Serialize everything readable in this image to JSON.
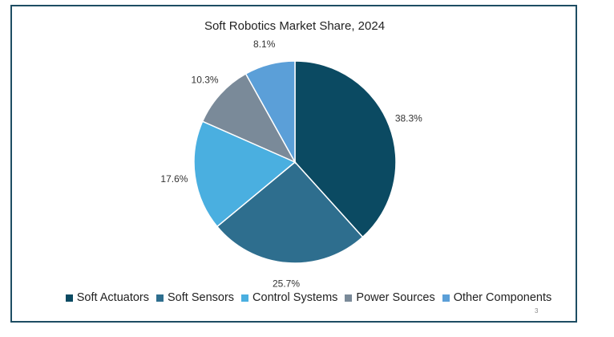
{
  "page_number": "3",
  "chart_data": {
    "type": "pie",
    "title": "Soft Robotics Market Share, 2024",
    "categories": [
      "Soft Actuators",
      "Soft Sensors",
      "Control Systems",
      "Power Sources",
      "Other Components"
    ],
    "values": [
      38.3,
      25.7,
      17.6,
      10.3,
      8.1
    ],
    "value_labels": [
      "38.3%",
      "25.7%",
      "17.6%",
      "10.3%",
      "8.1%"
    ],
    "colors": [
      "#0b4a62",
      "#2e6e8e",
      "#4aafe0",
      "#7a8a99",
      "#5b9fd8"
    ],
    "start_angle_deg": 0,
    "direction": "clockwise",
    "legend_position": "bottom"
  }
}
